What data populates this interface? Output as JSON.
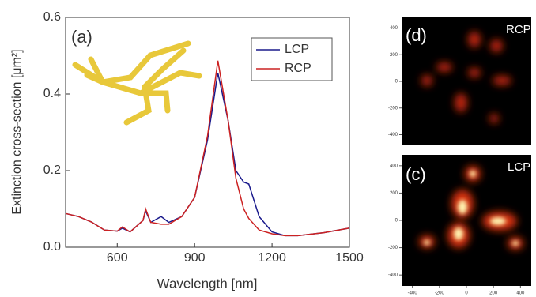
{
  "chart_data": [
    {
      "type": "line",
      "annotation": "(a)",
      "x_label": "Wavelength [nm]",
      "y_label": "Extinction cross-section [μm²]",
      "x": [
        400,
        450,
        500,
        550,
        600,
        620,
        650,
        700,
        710,
        730,
        770,
        800,
        850,
        900,
        950,
        990,
        1030,
        1060,
        1090,
        1110,
        1150,
        1200,
        1250,
        1300,
        1400,
        1500
      ],
      "series": [
        {
          "name": "LCP",
          "color": "#1a1a8c",
          "values": [
            0.088,
            0.08,
            0.066,
            0.045,
            0.042,
            0.05,
            0.04,
            0.07,
            0.095,
            0.065,
            0.08,
            0.065,
            0.08,
            0.13,
            0.28,
            0.455,
            0.33,
            0.2,
            0.17,
            0.165,
            0.08,
            0.04,
            0.03,
            0.03,
            0.038,
            0.05
          ]
        },
        {
          "name": "RCP",
          "color": "#cc2222",
          "values": [
            0.088,
            0.08,
            0.066,
            0.045,
            0.042,
            0.053,
            0.04,
            0.07,
            0.1,
            0.065,
            0.06,
            0.06,
            0.08,
            0.13,
            0.29,
            0.487,
            0.33,
            0.18,
            0.1,
            0.075,
            0.045,
            0.035,
            0.03,
            0.03,
            0.038,
            0.05
          ]
        }
      ],
      "xlim": [
        400,
        1500
      ],
      "xticks": [
        600,
        900,
        1200,
        1500
      ],
      "ylim": [
        0,
        0.6
      ],
      "yticks": [
        {
          "value": 0,
          "label": "0.0"
        },
        0.2,
        0.4,
        0.6
      ],
      "legend": "upper right"
    },
    {
      "type": "heatmap",
      "annotation": "(d)",
      "label": "RCP",
      "ylim": [
        -480,
        480
      ],
      "yticks": [
        400,
        200,
        0,
        -200,
        -400
      ]
    },
    {
      "type": "heatmap",
      "annotation": "(c)",
      "label": "LCP",
      "xlim": [
        -480,
        480
      ],
      "xticks": [
        -400,
        -200,
        0,
        200,
        400
      ],
      "ylim": [
        -480,
        480
      ],
      "yticks": [
        400,
        200,
        0,
        -200,
        -400
      ]
    }
  ]
}
